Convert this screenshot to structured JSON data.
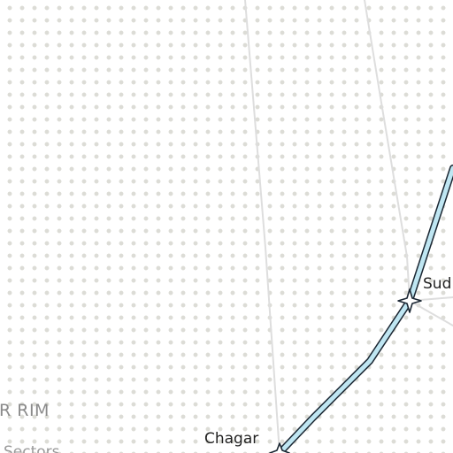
{
  "map": {
    "region_label": "R RIM",
    "subregion_label": "Sectors",
    "systems": [
      {
        "name": "Sud"
      },
      {
        "name": "Chagar"
      }
    ],
    "colors": {
      "route_fill": "#bfe6f2",
      "route_outline": "#1b2733",
      "hyperlane": "#dedede",
      "grid_dot": "#dcdcd6",
      "system_marker": "#ffffff"
    }
  }
}
